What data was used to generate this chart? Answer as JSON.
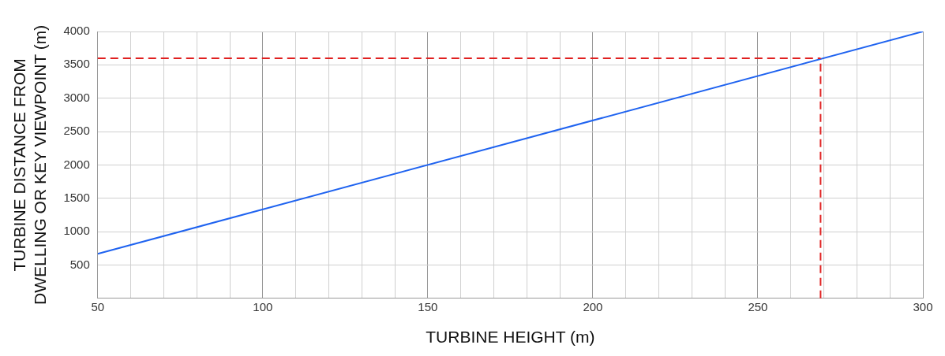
{
  "chart_data": {
    "type": "line",
    "xlabel": "TURBINE HEIGHT (m)",
    "ylabel": "TURBINE DISTANCE FROM\nDWELLING OR KEY VIEWPOINT (m)",
    "x": [
      50,
      300
    ],
    "series": [
      {
        "color": "#1f63f0",
        "values": [
          667,
          4000
        ]
      }
    ],
    "xlim": [
      50,
      300
    ],
    "xticks": [
      50,
      {
        "value": 60,
        "label": null
      },
      {
        "value": 70,
        "label": null
      },
      {
        "value": 80,
        "label": null
      },
      {
        "value": 90,
        "label": null
      },
      100,
      {
        "value": 110,
        "label": null
      },
      {
        "value": 120,
        "label": null
      },
      {
        "value": 130,
        "label": null
      },
      {
        "value": 140,
        "label": null
      },
      150,
      {
        "value": 160,
        "label": null
      },
      {
        "value": 170,
        "label": null
      },
      {
        "value": 180,
        "label": null
      },
      {
        "value": 190,
        "label": null
      },
      200,
      {
        "value": 210,
        "label": null
      },
      {
        "value": 220,
        "label": null
      },
      {
        "value": 230,
        "label": null
      },
      {
        "value": 240,
        "label": null
      },
      250,
      {
        "value": 260,
        "label": null
      },
      {
        "value": 270,
        "label": null
      },
      {
        "value": 280,
        "label": null
      },
      {
        "value": 290,
        "label": null
      },
      300
    ],
    "ylim": [
      0,
      4000
    ],
    "yticks": [
      {
        "value": 0,
        "label": null
      },
      500,
      1000,
      1500,
      2000,
      2500,
      3000,
      3500,
      4000
    ],
    "ref_lines": [
      {
        "axis": "y",
        "value": 3600,
        "color": "#e02020",
        "line_style": "dashed"
      },
      {
        "axis": "x",
        "value": 269,
        "color": "#e02020",
        "line_style": "dashed"
      }
    ],
    "grid": true,
    "legend": false,
    "marker": "none",
    "line_style": "solid"
  }
}
